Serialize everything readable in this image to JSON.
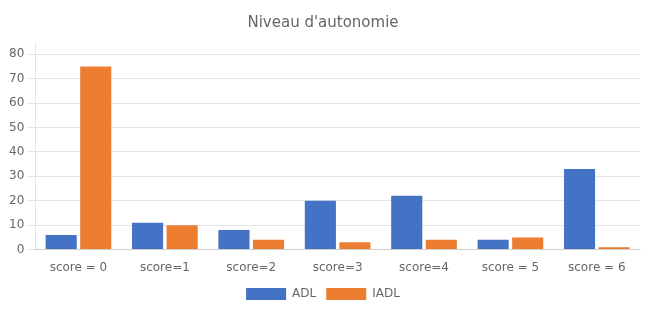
{
  "chart_data": {
    "type": "bar",
    "title": "Niveau d'autonomie",
    "categories": [
      "score = 0",
      "score=1",
      "score=2",
      "score=3",
      "score=4",
      "score = 5",
      "score = 6"
    ],
    "series": [
      {
        "name": "ADL",
        "color": "#4472C4",
        "values": [
          6,
          11,
          8,
          20,
          22,
          4,
          33
        ]
      },
      {
        "name": "IADL",
        "color": "#ED7D31",
        "values": [
          75,
          10,
          4,
          3,
          4,
          5,
          1
        ]
      }
    ],
    "ylim": [
      0,
      85
    ],
    "yticks": [
      0,
      10,
      20,
      30,
      40,
      50,
      60,
      70,
      80
    ],
    "grid": true,
    "legend": "bottom"
  }
}
